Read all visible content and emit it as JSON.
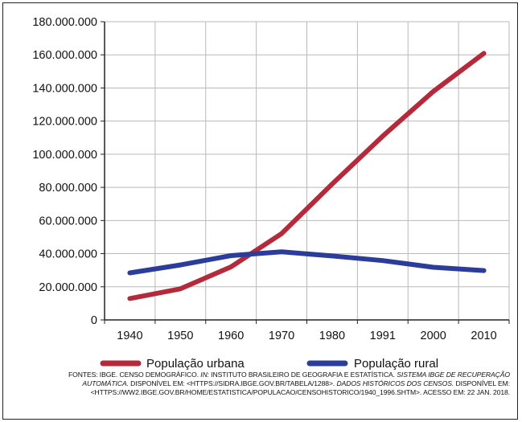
{
  "chart_data": {
    "type": "line",
    "title": "",
    "xlabel": "",
    "ylabel": "",
    "categories": [
      "1940",
      "1950",
      "1960",
      "1970",
      "1980",
      "1991",
      "2000",
      "2010"
    ],
    "ylim": [
      0,
      180000000
    ],
    "yticks": [
      0,
      20000000,
      40000000,
      60000000,
      80000000,
      100000000,
      120000000,
      140000000,
      160000000,
      180000000
    ],
    "ytick_labels": [
      "0",
      "20.000.000",
      "40.000.000",
      "60.000.000",
      "80.000.000",
      "100.000.000",
      "120.000.000",
      "140.000.000",
      "160.000.000",
      "180.000.000"
    ],
    "grid": true,
    "legend_position": "bottom",
    "series": [
      {
        "name": "População urbana",
        "color": "#b52a3a",
        "values": [
          12900000,
          18800000,
          32000000,
          52100000,
          82000000,
          110900000,
          137900000,
          160900000
        ]
      },
      {
        "name": "População rural",
        "color": "#2b3d9a",
        "values": [
          28400000,
          33200000,
          38800000,
          41100000,
          38600000,
          35800000,
          31800000,
          29800000
        ]
      }
    ]
  },
  "source": {
    "fontes_prefix": "FONTES: IBGE. CENSO DEMOGRÁFICO.",
    "in_label": "IN:",
    "institute": "INSTITUTO BRASILEIRO DE GEOGRAFIA E ESTATÍSTICA.",
    "sidra_title": "SISTEMA IBGE DE RECUPERAÇÃO AUTOMÁTICA.",
    "sidra_available": "DISPONÍVEL EM: <HTTPS://SIDRA.IBGE.GOV.BR/TABELA/1288>.",
    "dados_title": "DADOS HISTÓRICOS DOS CENSOS.",
    "dados_available": "DISPONÍVEL EM: <HTTPS://WW2.IBGE.GOV.BR/HOME/ESTATISTICA/POPULACAO/CENSOHISTORICO/1940_1996.SHTM>.",
    "accessed": "ACESSO EM: 22 JAN. 2018."
  }
}
